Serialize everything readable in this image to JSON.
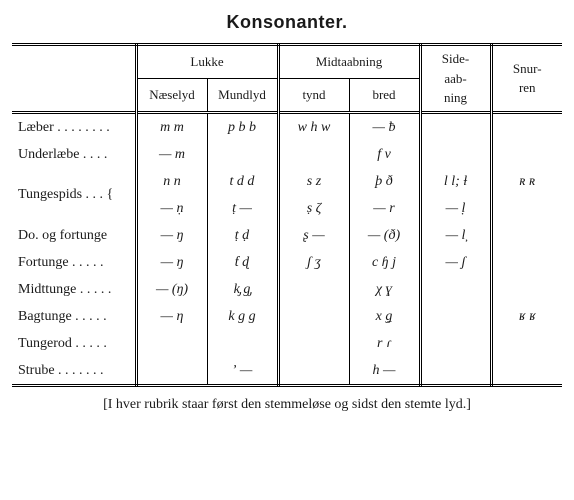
{
  "title": "Konsonanter.",
  "headers": {
    "group1": "Lukke",
    "group2": "Midtaabning",
    "group1a": "Næselyd",
    "group1b": "Mundlyd",
    "group2a": "tynd",
    "group2b": "bred",
    "side_line1": "Side-",
    "side_line2": "aab-",
    "side_line3": "ning",
    "snur_line1": "Snur-",
    "snur_line2": "ren"
  },
  "rows": {
    "r1": {
      "label": "Læber . . . . . . . .",
      "c1": "m m",
      "c2": "p b b",
      "c3": "w h w",
      "c4": "— ƀ",
      "c5": "",
      "c6": ""
    },
    "r2": {
      "label": "Underlæbe . . . .",
      "c1": "— m",
      "c2": "",
      "c3": "",
      "c4": "f v",
      "c5": "",
      "c6": ""
    },
    "r3": {
      "label_full": "Tungespids . . . {",
      "c1": "n n",
      "c2": "t d d",
      "c3": "s z",
      "c4": "þ ð",
      "c5": "l l; ƚ",
      "c6": "ʀ ʀ"
    },
    "r4": {
      "c1": "— ṇ",
      "c2": "ṭ —",
      "c3": "ṣ ζ",
      "c4": "— r",
      "c5": "— ḷ",
      "c6": ""
    },
    "r5": {
      "label": "Do. og fortunge",
      "c1": "— ŋ",
      "c2": "ṭ ḍ",
      "c3": "ʂ —",
      "c4": "— (ð)",
      "c5": "— l̦",
      "c6": ""
    },
    "r6": {
      "label": "Fortunge . . . . .",
      "c1": "— ŋ",
      "c2": "ƭ ɖ",
      "c3": "ʃ ʒ",
      "c4": "c ɧ j",
      "c5": "— ʃ",
      "c6": ""
    },
    "r7": {
      "label": "Midttunge . . . . .",
      "c1": "— (ŋ)",
      "c2": "k̡ g̡",
      "c3": "",
      "c4": "χ ɣ",
      "c5": "",
      "c6": ""
    },
    "r8": {
      "label": "Bagtunge . . . . .",
      "c1": "— η",
      "c2": "k g g",
      "c3": "",
      "c4": "x ǥ",
      "c5": "",
      "c6": "ʁ ʁ"
    },
    "r9": {
      "label": "Tungerod . . . . .",
      "c1": "",
      "c2": "",
      "c3": "",
      "c4": "r ɾ",
      "c5": "",
      "c6": ""
    },
    "r10": {
      "label": "Strube . . . . . . .",
      "c1": "",
      "c2": "ʼ —",
      "c3": "",
      "c4": "h —",
      "c5": "",
      "c6": ""
    }
  },
  "footnote": "[I hver rubrik staar først den stemmeløse og sidst den stemte lyd.]"
}
